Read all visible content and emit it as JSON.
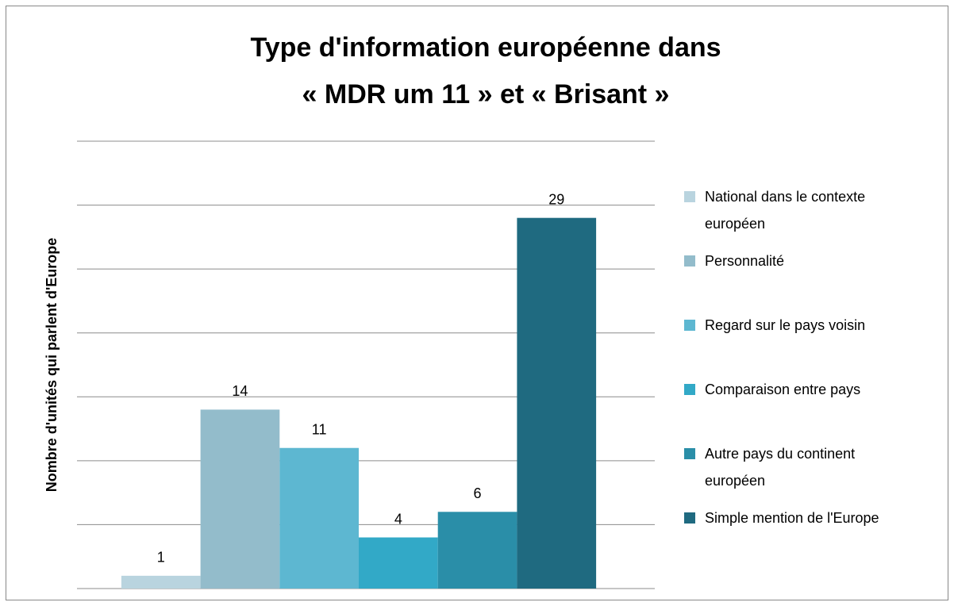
{
  "chart_data": {
    "type": "bar",
    "title": [
      "Type d'information européenne dans",
      "« MDR um 11 » et « Brisant »"
    ],
    "y_label": "Nombre d'unités qui parlent d'Europe",
    "categories": [
      null
    ],
    "series": [
      {
        "name": "National dans le contexte européen",
        "color": "#b9d4df",
        "values": [
          1
        ]
      },
      {
        "name": "Personnalité",
        "color": "#93bccb",
        "values": [
          14
        ]
      },
      {
        "name": "Regard sur le pays voisin",
        "color": "#5db7d1",
        "values": [
          11
        ]
      },
      {
        "name": "Comparaison entre pays",
        "color": "#32a9c7",
        "values": [
          4
        ]
      },
      {
        "name": "Autre pays du continent européen",
        "color": "#2a8ea8",
        "values": [
          6
        ]
      },
      {
        "name": "Simple mention de l'Europe",
        "color": "#1f6a80",
        "values": [
          29
        ]
      }
    ],
    "ylim": [
      0,
      35
    ],
    "yticks": [
      0,
      5,
      10,
      15,
      20,
      25,
      30,
      35
    ],
    "grid": true
  }
}
